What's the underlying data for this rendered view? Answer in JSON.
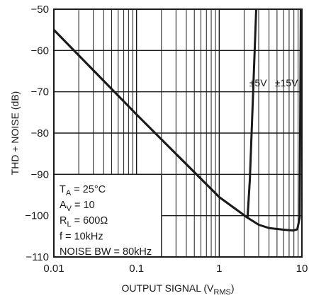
{
  "chart_data": {
    "type": "line",
    "xlabel": "OUTPUT SIGNAL (V",
    "xlabel_sub": "RMS",
    "xlabel_end": ")",
    "ylabel": "THD + NOISE (dB)",
    "xscale": "log",
    "xlim": [
      0.01,
      10
    ],
    "ylim": [
      -110,
      -50
    ],
    "grid": true,
    "x_ticks": [
      {
        "value": 0.01,
        "label": "0.01"
      },
      {
        "value": 0.1,
        "label": "0.1"
      },
      {
        "value": 1,
        "label": "1"
      },
      {
        "value": 10,
        "label": "10"
      }
    ],
    "y_ticks": [
      {
        "value": -50,
        "label": "−50"
      },
      {
        "value": -60,
        "label": "−60"
      },
      {
        "value": -70,
        "label": "−70"
      },
      {
        "value": -80,
        "label": "−80"
      },
      {
        "value": -90,
        "label": "−90"
      },
      {
        "value": -100,
        "label": "−100"
      },
      {
        "value": -110,
        "label": "−110"
      }
    ],
    "series": [
      {
        "name": "±5V",
        "points": [
          [
            0.01,
            -55
          ],
          [
            0.1,
            -75.5
          ],
          [
            1,
            -95.5
          ],
          [
            2.2,
            -100.5
          ],
          [
            2.35,
            -91
          ],
          [
            2.55,
            -72
          ],
          [
            2.8,
            -50
          ]
        ]
      },
      {
        "name": "±15V",
        "points": [
          [
            0.01,
            -55
          ],
          [
            0.1,
            -75.5
          ],
          [
            1,
            -95.5
          ],
          [
            2.2,
            -100.5
          ],
          [
            3,
            -102.2
          ],
          [
            4,
            -103
          ],
          [
            6,
            -103.4
          ],
          [
            7.8,
            -103.6
          ],
          [
            8.8,
            -103.3
          ],
          [
            9.4,
            -100.5
          ],
          [
            9.7,
            -50
          ]
        ]
      }
    ],
    "series_label_positions": [
      {
        "name": "±5V",
        "x": 2.95,
        "y": -67.8
      },
      {
        "name": "±15V",
        "x": 6.5,
        "y": -67.8
      }
    ],
    "conditions": [
      {
        "main": "T",
        "sub": "A",
        "rest": " = 25°C"
      },
      {
        "main": "A",
        "sub": "V",
        "rest": " = 10"
      },
      {
        "main": "R",
        "sub": "L",
        "rest": " = 600Ω"
      },
      {
        "main": "f = 10kHz",
        "sub": "",
        "rest": ""
      },
      {
        "main": "NOISE BW = 80kHz",
        "sub": "",
        "rest": ""
      }
    ]
  }
}
